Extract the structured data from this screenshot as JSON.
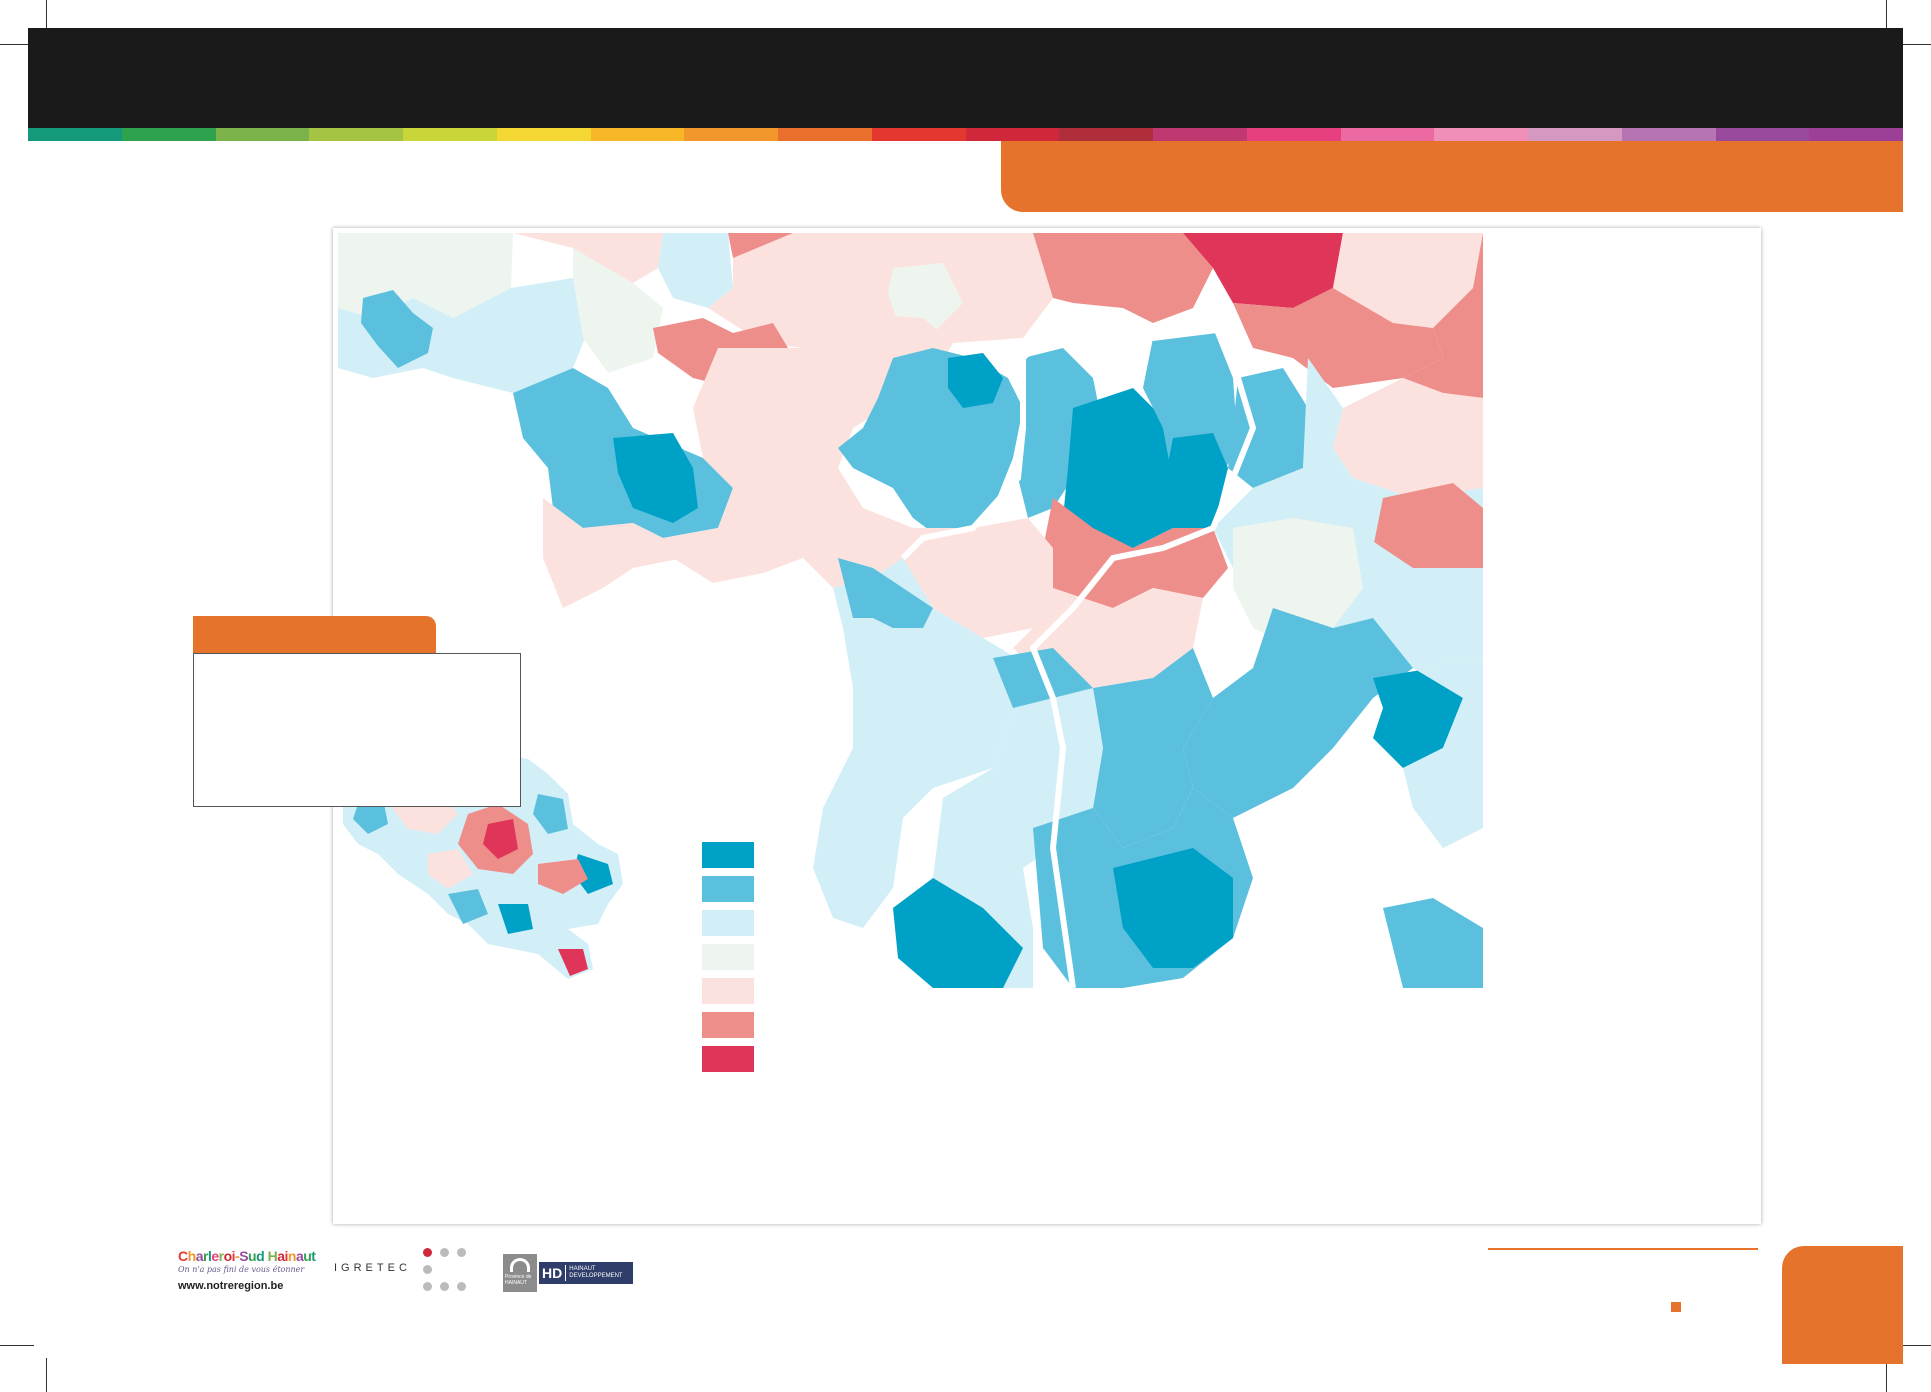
{
  "strip_colors": [
    "#149a7a",
    "#2ea24e",
    "#7cb24a",
    "#a6c443",
    "#cad53a",
    "#f4d732",
    "#f6b626",
    "#f0962a",
    "#eb6f2c",
    "#e4372f",
    "#d0283a",
    "#b02d3a",
    "#c03870",
    "#e8407e",
    "#ec6aa2",
    "#f090b8",
    "#d598c0",
    "#b774b2",
    "#9a4a9c",
    "#9c3f97"
  ],
  "legend": {
    "colors": [
      "#00a1c6",
      "#5bc0de",
      "#d2eff7",
      "#eef5ef",
      "#fce2de",
      "#ee8e8a",
      "#df3558"
    ]
  },
  "logos": {
    "csh_word": "Charleroi-Sud Hainaut",
    "csh_tagline": "On n'a pas fini de vous étonner",
    "csh_url": "www.notreregion.be",
    "igretec": "IGRETEC",
    "hd_mark": "HD",
    "hd_line1": "HAINAUT",
    "hd_line2": "DEVELOPPEMENT",
    "province": "Province de HAINAUT"
  }
}
